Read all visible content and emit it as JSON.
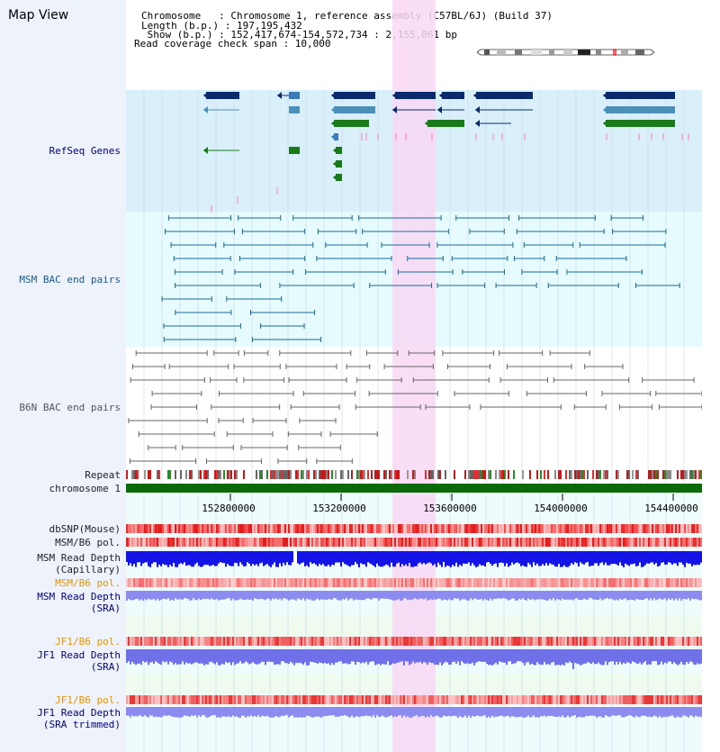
{
  "header": {
    "title": "Map View",
    "info_lines": [
      "Chromosome   : Chromosome 1, reference assembly (C57BL/6J) (Build 37)",
      "Length (b.p.) : 197,195,432",
      " Show (b.p.) : 152,417,674-154,572,734 : 2,155,061 bp",
      "Read coverage check span : 10,000"
    ]
  },
  "tracks": {
    "refseq": "RefSeq Genes",
    "msm_bac": "MSM BAC end pairs",
    "b6n_bac": "B6N BAC end pairs",
    "repeat": "Repeat",
    "chromosome": "chromosome 1",
    "dbsnp": "dbSNP(Mouse)",
    "msm_b6_pol_1": "MSM/B6 pol.",
    "msm_depth_cap_1": "MSM Read Depth",
    "msm_depth_cap_2": "(Capillary)",
    "msm_b6_pol_2": "MSM/B6 pol.",
    "msm_depth_sra_1": "MSM Read Depth",
    "msm_depth_sra_2": "(SRA)",
    "jf1_b6_pol_1": "JF1/B6 pol.",
    "jf1_depth_sra_1": "JF1 Read Depth",
    "jf1_depth_sra_2": "(SRA)",
    "jf1_b6_pol_2": "JF1/B6 pol.",
    "jf1_depth_trim_1": "JF1 Read Depth",
    "jf1_depth_trim_2": "(SRA trimmed)"
  },
  "axis": {
    "ticks": [
      "152800000",
      "153200000",
      "153600000",
      "154000000",
      "154400000"
    ]
  },
  "colors": {
    "label_navy": "#000080",
    "label_orange": "#e69500",
    "refseq_bg": "#d9f0fb",
    "msm_bg": "#e6fbfd",
    "highlight": "#f8d8f4",
    "gene_navy": "#0a2a6c",
    "gene_teal": "#4a90b8",
    "gene_green": "#1a7a1a",
    "chromosome_bar": "#0a6a0a",
    "depth_blue": "#1414e6",
    "depth_light": "#8c8cf0"
  }
}
